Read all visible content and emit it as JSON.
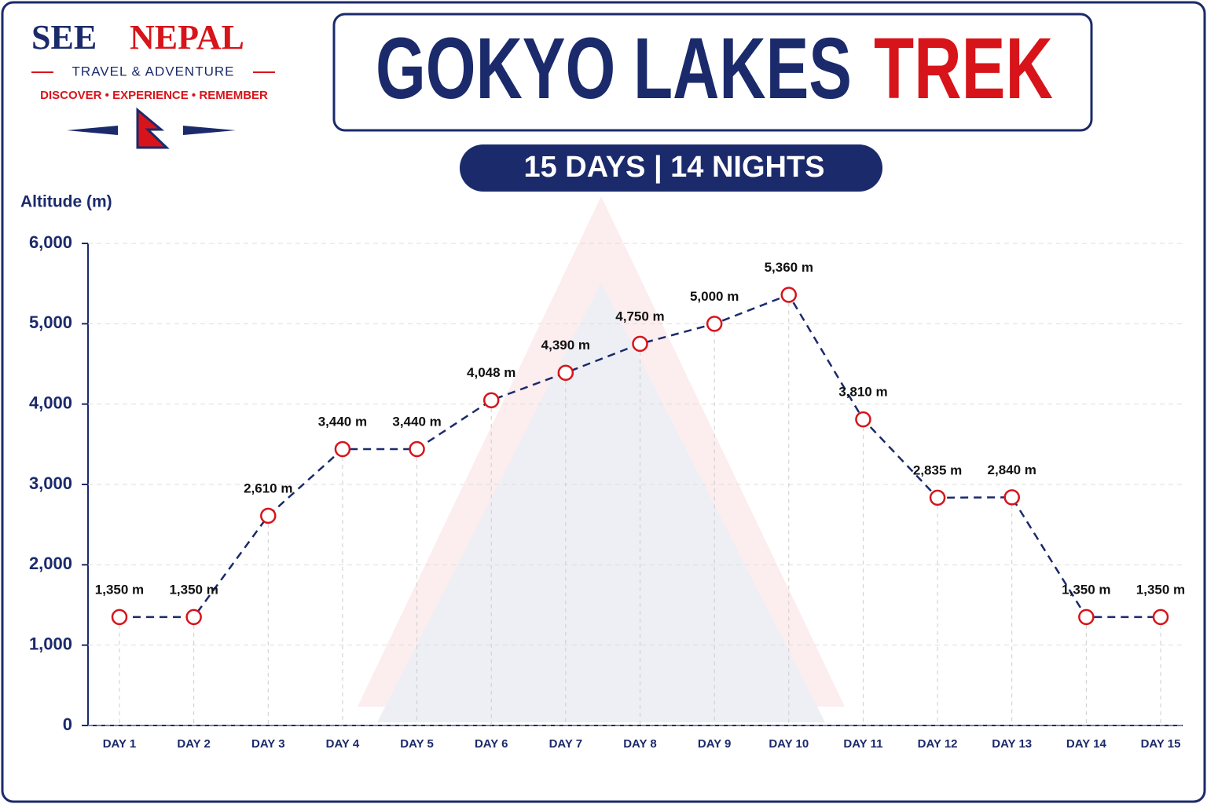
{
  "brand": {
    "name_1": "SEE",
    "name_2": "NEPAL",
    "tagline": "TRAVEL & ADVENTURE",
    "motto": "DISCOVER • EXPERIENCE • REMEMBER"
  },
  "chart_data": {
    "type": "line",
    "title": "GOKYO LAKES",
    "title_highlight": "TREK",
    "subtitle": "15 DAYS | 14 NIGHTS",
    "y_label": "Altitude (m)",
    "categories": [
      "DAY 1",
      "DAY 2",
      "DAY 3",
      "DAY 4",
      "DAY 5",
      "DAY 6",
      "DAY 7",
      "DAY 8",
      "DAY 9",
      "DAY 10",
      "DAY 11",
      "DAY 12",
      "DAY 13",
      "DAY 14",
      "DAY 15"
    ],
    "values": [
      1350,
      1350,
      2610,
      3440,
      3440,
      4048,
      4390,
      4750,
      5000,
      5360,
      3810,
      2835,
      2840,
      1350,
      1350
    ],
    "value_labels": [
      "1,350 m",
      "1,350 m",
      "2,610 m",
      "3,440 m",
      "3,440 m",
      "4,048 m",
      "4,390 m",
      "4,750 m",
      "5,000 m",
      "5,360 m",
      "3,810 m",
      "2,835 m",
      "2,840 m",
      "1,350 m",
      "1,350 m"
    ],
    "color": "#1b2a6b",
    "marker_color": "#d7141a",
    "ylim": [
      0,
      6000
    ],
    "yticks": [
      0,
      {
        "value": 1000,
        "label": "1,000"
      },
      {
        "value": 2000,
        "label": "2,000"
      },
      {
        "value": 3000,
        "label": "3,000"
      },
      {
        "value": 4000,
        "label": "4,000"
      },
      {
        "value": 5000,
        "label": "5,000"
      },
      {
        "value": 6000,
        "label": "6,000"
      }
    ],
    "grid": true
  }
}
